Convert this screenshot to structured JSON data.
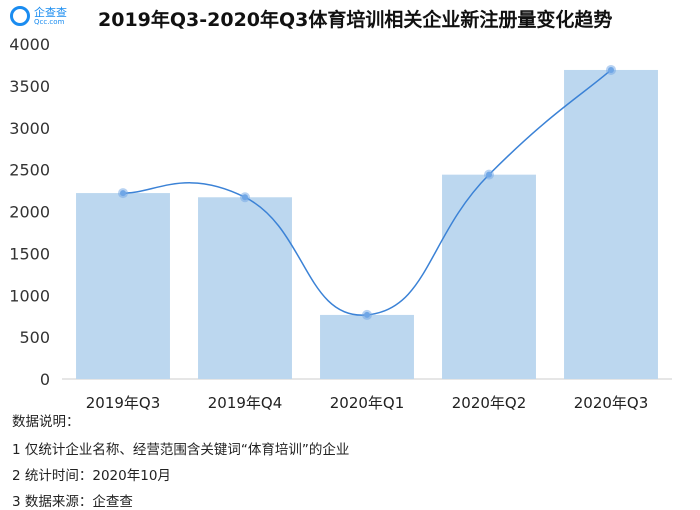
{
  "logo": {
    "name": "企查查",
    "domain": "Qcc.com"
  },
  "chart_data": {
    "type": "bar",
    "title": "2019年Q3-2020年Q3体育培训相关企业新注册量变化趋势",
    "categories": [
      "2019年Q3",
      "2019年Q4",
      "2020年Q1",
      "2020年Q2",
      "2020年Q3"
    ],
    "values": [
      2220,
      2170,
      765,
      2440,
      3690
    ],
    "overlay": "smooth-line",
    "ylim": [
      0,
      4000
    ],
    "yticks": [
      0,
      500,
      1000,
      1500,
      2000,
      2500,
      3000,
      3500,
      4000
    ],
    "grid": false,
    "colors": {
      "bar": "#bcd7ef",
      "line": "#3b82d6",
      "marker": "#6fa6e6"
    }
  },
  "notes": {
    "heading": "数据说明：",
    "lines": [
      "1 仅统计企业名称、经营范围含关键词“体育培训”的企业",
      "2 统计时间：2020年10月",
      "3 数据来源：企查查"
    ]
  }
}
